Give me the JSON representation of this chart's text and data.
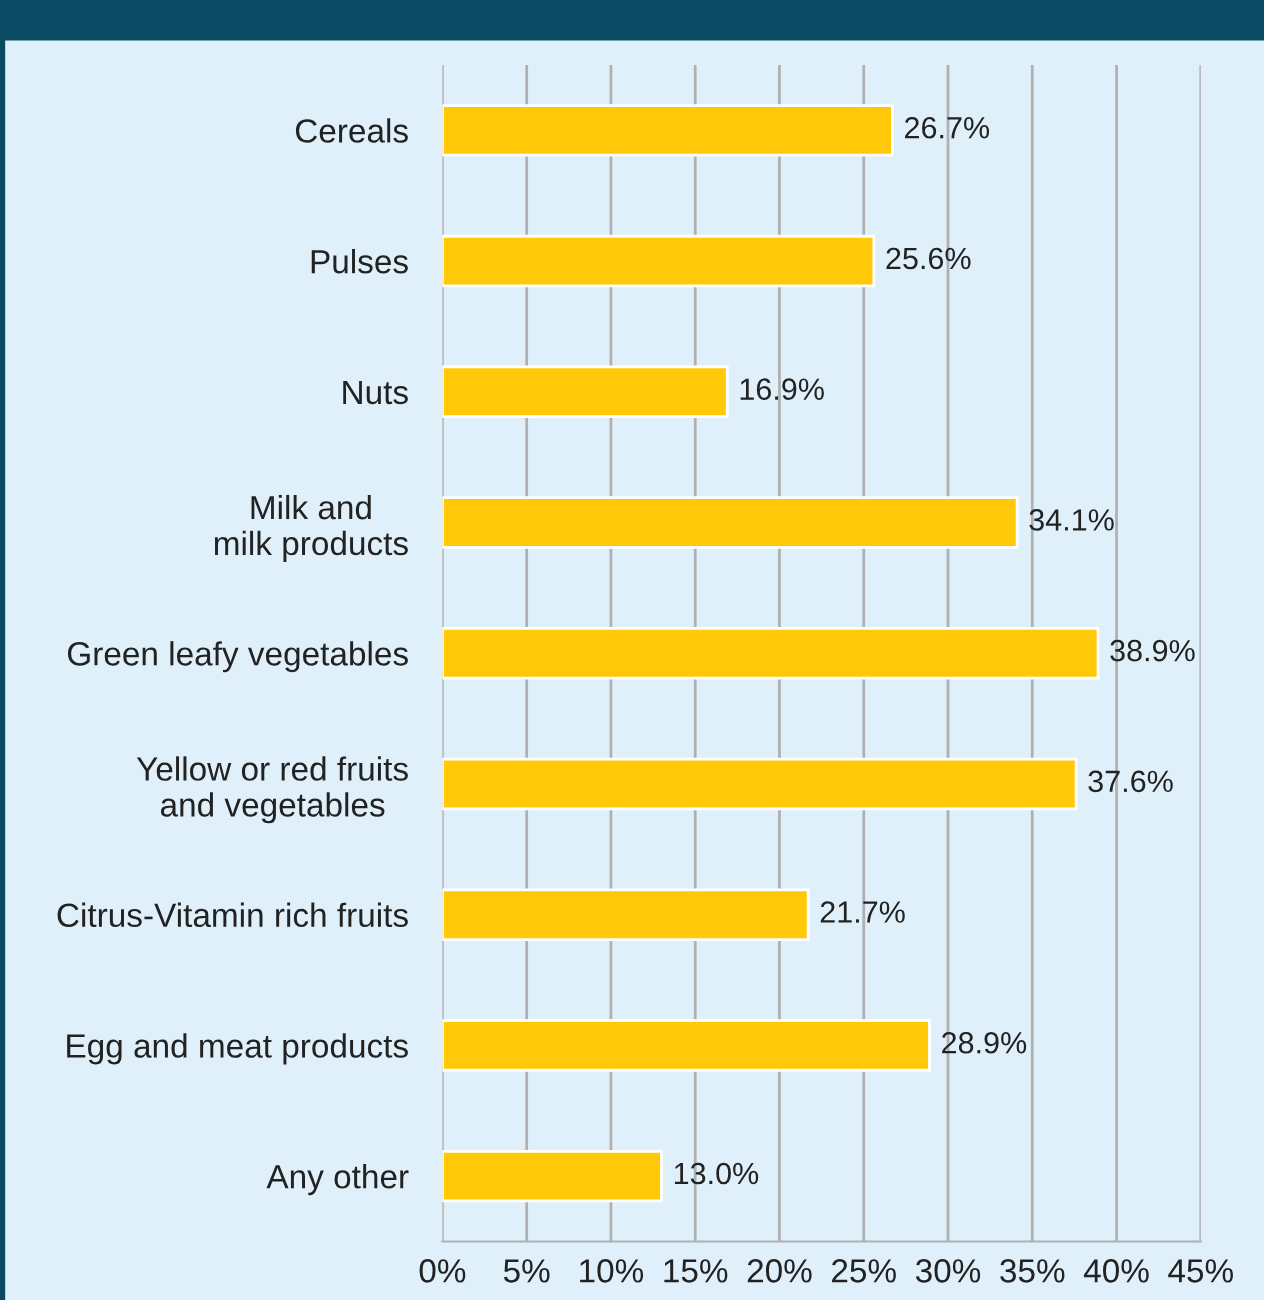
{
  "chart_data": {
    "type": "bar",
    "orientation": "horizontal",
    "categories": [
      "Cereals",
      "Pulses",
      "Nuts",
      "Milk and\nmilk products",
      "Green leafy vegetables",
      "Yellow or red fruits\nand vegetables",
      "Citrus-Vitamin rich fruits",
      "Egg and meat products",
      "Any other"
    ],
    "values": [
      26.7,
      25.6,
      16.9,
      34.1,
      38.9,
      37.6,
      21.7,
      28.9,
      13.0
    ],
    "value_labels": [
      "26.7%",
      "25.6%",
      "16.9%",
      "34.1%",
      "38.9%",
      "37.6%",
      "21.7%",
      "28.9%",
      "13.0%"
    ],
    "color": "#ffc808",
    "xlim": [
      0,
      45
    ],
    "xticks": [
      {
        "value": 0,
        "label": "0%"
      },
      {
        "value": 5,
        "label": "5%"
      },
      {
        "value": 10,
        "label": "10%"
      },
      {
        "value": 15,
        "label": "15%"
      },
      {
        "value": 20,
        "label": "20%"
      },
      {
        "value": 25,
        "label": "25%"
      },
      {
        "value": 30,
        "label": "30%"
      },
      {
        "value": 35,
        "label": "35%"
      },
      {
        "value": 40,
        "label": "40%"
      },
      {
        "value": 45,
        "label": "45%"
      }
    ],
    "grid": "x",
    "legend": false
  }
}
